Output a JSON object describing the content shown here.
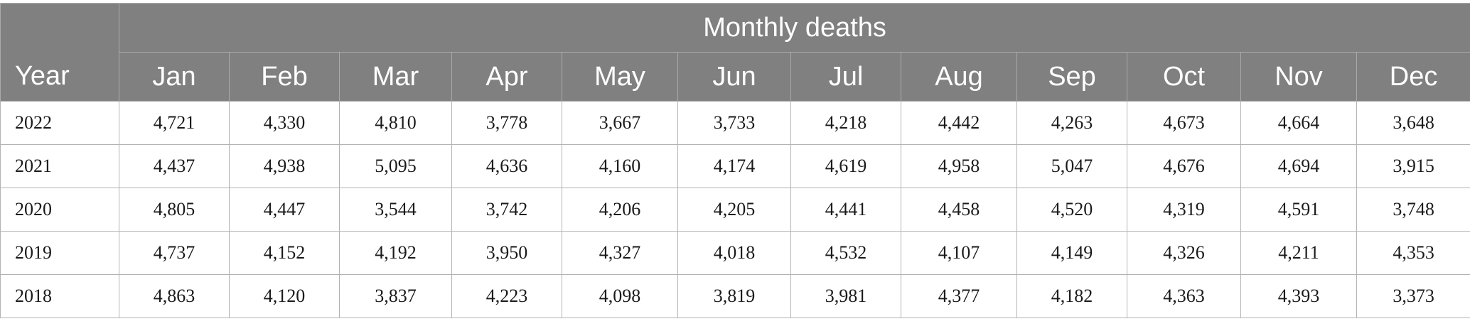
{
  "table": {
    "year_header": "Year",
    "group_header": "Monthly deaths",
    "months": [
      "Jan",
      "Feb",
      "Mar",
      "Apr",
      "May",
      "Jun",
      "Jul",
      "Aug",
      "Sep",
      "Oct",
      "Nov",
      "Dec"
    ],
    "rows": [
      {
        "year": "2022",
        "values": [
          "4,721",
          "4,330",
          "4,810",
          "3,778",
          "3,667",
          "3,733",
          "4,218",
          "4,442",
          "4,263",
          "4,673",
          "4,664",
          "3,648"
        ]
      },
      {
        "year": "2021",
        "values": [
          "4,437",
          "4,938",
          "5,095",
          "4,636",
          "4,160",
          "4,174",
          "4,619",
          "4,958",
          "5,047",
          "4,676",
          "4,694",
          "3,915"
        ]
      },
      {
        "year": "2020",
        "values": [
          "4,805",
          "4,447",
          "3,544",
          "3,742",
          "4,206",
          "4,205",
          "4,441",
          "4,458",
          "4,520",
          "4,319",
          "4,591",
          "3,748"
        ]
      },
      {
        "year": "2019",
        "values": [
          "4,737",
          "4,152",
          "4,192",
          "3,950",
          "4,327",
          "4,018",
          "4,532",
          "4,107",
          "4,149",
          "4,326",
          "4,211",
          "4,353"
        ]
      },
      {
        "year": "2018",
        "values": [
          "4,863",
          "4,120",
          "3,837",
          "4,223",
          "4,098",
          "3,819",
          "3,981",
          "4,377",
          "4,182",
          "4,363",
          "4,393",
          "3,373"
        ]
      }
    ]
  }
}
